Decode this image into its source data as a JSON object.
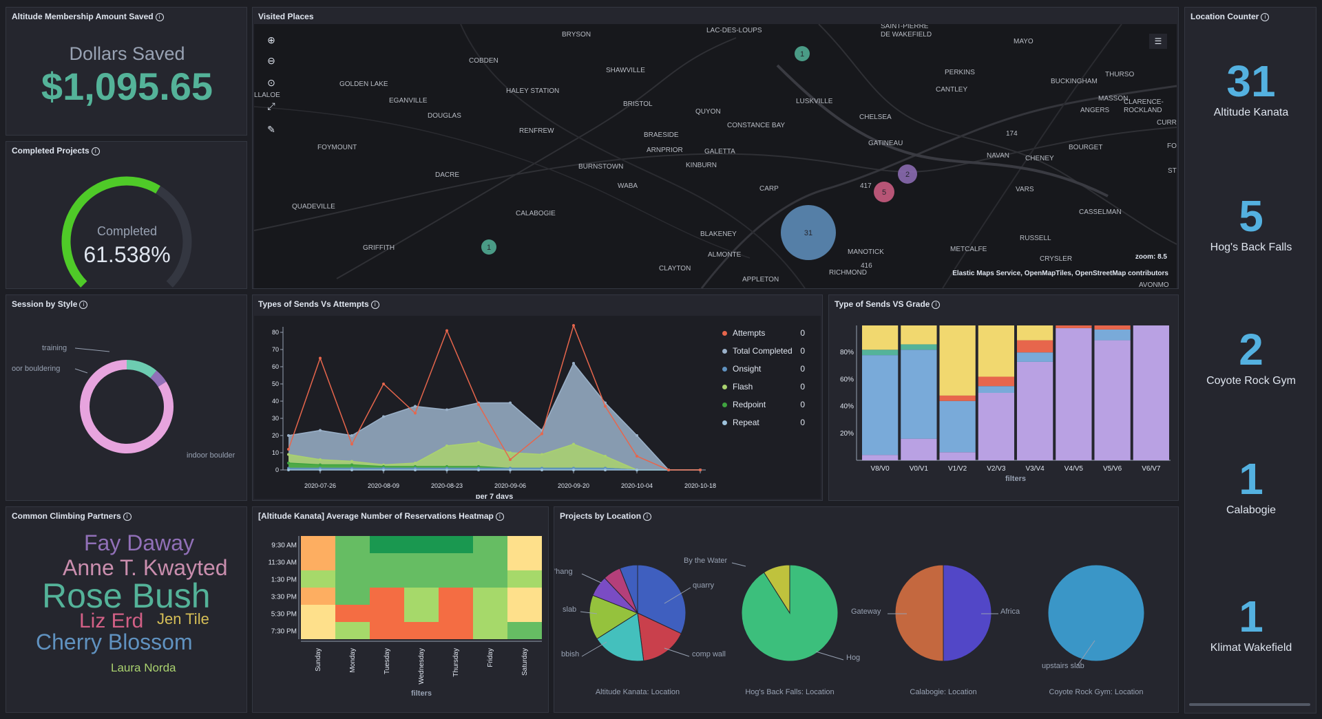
{
  "panels": {
    "dollars": {
      "title": "Altitude Membership Amount Saved",
      "label": "Dollars Saved",
      "value": "$1,095.65",
      "value_color": "#54b399"
    },
    "completed": {
      "title": "Completed Projects",
      "label": "Completed",
      "value": "61.538%",
      "gauge_fraction": 0.61538
    },
    "map": {
      "title": "Visited Places",
      "zoom_label": "zoom:",
      "zoom_value": "8.5",
      "attribution": "Elastic Maps Service, OpenMapTiles, OpenStreetMap contributors",
      "clusters": [
        {
          "count": "1",
          "color": "#54b399"
        },
        {
          "count": "1",
          "color": "#54b399"
        },
        {
          "count": "31",
          "color": "#6092c0"
        },
        {
          "count": "5",
          "color": "#d36086"
        },
        {
          "count": "2",
          "color": "#9170b8"
        }
      ],
      "places": [
        "BRYSON",
        "LAC-DES-LOUPS",
        "SAINT-PIERRE",
        "DE WAKEFIELD",
        "MAYO",
        "COBDEN",
        "SHAWVILLE",
        "PERKINS",
        "BUCKINGHAM",
        "THURSO",
        "GOLDEN LAKE",
        "HALEY STATION",
        "CANTLEY",
        "LLALOE",
        "EGANVILLE",
        "BRISTOL",
        "LUSKVILLE",
        "MASSON",
        "CLARENCE-",
        "ROCKLAND",
        "DOUGLAS",
        "QUYON",
        "ANGERS",
        "CHELSEA",
        "CURRAN",
        "RENFREW",
        "CONSTANCE BAY",
        "BRAESIDE",
        "GATINEAU",
        "FOYMOUNT",
        "ARNPRIOR",
        "GALETTA",
        "174",
        "NAVAN",
        "BOURGET",
        "FO",
        "BURNSTOWN",
        "KINBURN",
        "CHENEY",
        "DACRE",
        "WABA",
        "CARP",
        "417",
        "VARS",
        "ST",
        "QUADEVILLE",
        "CALABOGIE",
        "CASSELMAN",
        "BLAKENEY",
        "GRIFFITH",
        "RUSSELL",
        "ALMONTE",
        "MANOTICK",
        "METCALFE",
        "CRYSLER",
        "416",
        "CLAYTON",
        "RICHMOND",
        "APPLETON",
        "AVONMO"
      ]
    },
    "counter": {
      "title": "Location Counter",
      "items": [
        {
          "value": "31",
          "label": "Altitude Kanata"
        },
        {
          "value": "5",
          "label": "Hog's Back Falls"
        },
        {
          "value": "2",
          "label": "Coyote Rock Gym"
        },
        {
          "value": "1",
          "label": "Calabogie"
        },
        {
          "value": "1",
          "label": "Klimat Wakefield"
        }
      ]
    },
    "session": {
      "title": "Session by Style",
      "labels": [
        "training",
        "oor bouldering",
        "indoor boulder"
      ]
    },
    "sends_attempts": {
      "title": "Types of Sends Vs Attempts",
      "xlabel": "per 7 days"
    },
    "sends_grade": {
      "title": "Type of Sends VS Grade",
      "xlabel": "filters"
    },
    "partners": {
      "title": "Common Climbing Partners",
      "words": [
        {
          "text": "Fay Daway",
          "color": "#9170b8"
        },
        {
          "text": "Anne T. Kwayted",
          "color": "#ca8eae"
        },
        {
          "text": "Rose Bush",
          "color": "#54b399"
        },
        {
          "text": "Liz Erd",
          "color": "#d36086"
        },
        {
          "text": "Jen Tile",
          "color": "#d6bf57"
        },
        {
          "text": "Cherry Blossom",
          "color": "#6092c0"
        },
        {
          "text": "Laura Norda",
          "color": "#aad26f"
        }
      ]
    },
    "heatmap": {
      "title": "[Altitude Kanata] Average Number of Reservations Heatmap",
      "xlabel": "filters"
    },
    "projects": {
      "title": "Projects by Location",
      "pies": [
        {
          "caption": "Altitude Kanata: Location",
          "labels": [
            "By the Water",
            "quarry",
            "'hang",
            "slab",
            "comp wall",
            "bbish"
          ]
        },
        {
          "caption": "Hog's Back Falls: Location",
          "labels": [
            "Hog"
          ]
        },
        {
          "caption": "Calabogie: Location",
          "labels": [
            "Gateway",
            "Africa"
          ]
        },
        {
          "caption": "Coyote Rock Gym: Location",
          "labels": [
            "upstairs slab"
          ]
        }
      ]
    }
  },
  "chart_data": [
    {
      "type": "pie",
      "title": "Session by Style",
      "donut": true,
      "categories": [
        "indoor bouldering",
        "outdoor bouldering",
        "training"
      ],
      "values": [
        84,
        11,
        5
      ],
      "colors": [
        "#e7a4de",
        "#6dccb1",
        "#9170b8"
      ]
    },
    {
      "type": "line",
      "title": "Types of Sends Vs Attempts",
      "xlabel": "per 7 days",
      "ylim": [
        0,
        80
      ],
      "yticks": [
        0,
        10,
        20,
        30,
        40,
        50,
        60,
        70,
        80
      ],
      "xticks": [
        "2020-07-26",
        "2020-08-09",
        "2020-08-23",
        "2020-09-06",
        "2020-09-20",
        "2020-10-04",
        "2020-10-18"
      ],
      "x": [
        "2020-07-19",
        "2020-07-26",
        "2020-08-02",
        "2020-08-09",
        "2020-08-16",
        "2020-08-23",
        "2020-08-30",
        "2020-09-06",
        "2020-09-13",
        "2020-09-20",
        "2020-09-27",
        "2020-10-04",
        "2020-10-11",
        "2020-10-18"
      ],
      "series": [
        {
          "name": "Attempts",
          "color": "#e7664c",
          "style": "line",
          "values": [
            12,
            65,
            15,
            50,
            33,
            81,
            38,
            6,
            21,
            84,
            37,
            8,
            0,
            0
          ]
        },
        {
          "name": "Total Completed",
          "color": "#9ab1c9",
          "style": "area",
          "values": [
            20,
            23,
            20,
            31,
            37,
            35,
            39,
            39,
            23,
            62,
            39,
            20,
            0,
            0
          ]
        },
        {
          "name": "Onsight",
          "color": "#6092c0",
          "style": "area",
          "values": [
            1,
            1,
            1,
            1,
            1,
            1,
            1,
            1,
            1,
            1,
            1,
            0,
            0,
            0
          ]
        },
        {
          "name": "Flash",
          "color": "#aad26f",
          "style": "area",
          "values": [
            9,
            6,
            5,
            3,
            4,
            14,
            16,
            10,
            9,
            15,
            8,
            0,
            0,
            0
          ]
        },
        {
          "name": "Redpoint",
          "color": "#3fa33f",
          "style": "area",
          "values": [
            4,
            3,
            3,
            2,
            2,
            2,
            2,
            1,
            1,
            1,
            1,
            0,
            0,
            0
          ]
        },
        {
          "name": "Repeat",
          "color": "#9fc3dd",
          "style": "area",
          "values": [
            0,
            0,
            0,
            0,
            0,
            0,
            0,
            0,
            0,
            0,
            0,
            0,
            0,
            0
          ]
        }
      ],
      "legend_values": [
        "0",
        "0",
        "0",
        "0",
        "0",
        "0"
      ],
      "legend": "right"
    },
    {
      "type": "bar",
      "stacked": "percent",
      "title": "Type of Sends VS Grade",
      "xlabel": "filters",
      "categories": [
        "V8/V0",
        "V0/V1",
        "V1/V2",
        "V2/V3",
        "V3/V4",
        "V4/V5",
        "V5/V6",
        "V6/V7"
      ],
      "yticks": [
        "20%",
        "40%",
        "60%",
        "80%"
      ],
      "series": [
        {
          "color": "#b9a1e3",
          "values": [
            4,
            16,
            6,
            50,
            73,
            98,
            89,
            100
          ]
        },
        {
          "color": "#79aad9",
          "values": [
            74,
            66,
            38,
            5,
            7,
            0,
            8,
            0
          ]
        },
        {
          "color": "#e7664c",
          "values": [
            0,
            0,
            4,
            7,
            9,
            2,
            3,
            0
          ]
        },
        {
          "color": "#54b399",
          "values": [
            4,
            4,
            0,
            0,
            0,
            0,
            0,
            0
          ]
        },
        {
          "color": "#f1d86f",
          "values": [
            18,
            14,
            52,
            38,
            11,
            0,
            0,
            0
          ]
        }
      ]
    },
    {
      "type": "heatmap",
      "title": "[Altitude Kanata] Average Number of Reservations Heatmap",
      "xlabel": "filters",
      "x": [
        "Sunday",
        "Monday",
        "Tuesday",
        "Wednesday",
        "Thursday",
        "Friday",
        "Saturday"
      ],
      "y": [
        "9:30 AM",
        "11:30 AM",
        "1:30 PM",
        "3:30 PM",
        "5:30 PM",
        "7:30 PM"
      ],
      "values": [
        [
          2,
          5,
          7,
          7,
          7,
          5,
          1
        ],
        [
          2,
          5,
          5,
          5,
          5,
          5,
          1
        ],
        [
          3,
          5,
          5,
          5,
          5,
          4,
          3
        ],
        [
          2,
          4,
          9,
          3,
          9,
          3,
          1
        ],
        [
          1,
          9,
          9,
          3,
          9,
          3,
          1
        ],
        [
          1,
          3,
          9,
          9,
          9,
          3,
          5
        ]
      ],
      "palette": [
        "#d9ef8b",
        "#fee08b",
        "#fdae61",
        "#a6d96a",
        "#66bd63",
        "#66bd63",
        "#1a9850",
        "#1a9850",
        "#1a9850",
        "#f46d43"
      ]
    },
    {
      "type": "pie",
      "title": "Altitude Kanata: Location",
      "categories": [
        "quarry",
        "comp wall",
        "bbish",
        "slab",
        "overhang",
        "",
        "By the Water"
      ],
      "values": [
        32,
        16,
        18,
        15,
        7,
        6,
        6
      ],
      "colors": [
        "#3f5fbf",
        "#c9404c",
        "#44c0bd",
        "#95c23d",
        "#7a4cc4",
        "#b43f7a",
        "#3f5fbf"
      ]
    },
    {
      "type": "pie",
      "title": "Hog's Back Falls: Location",
      "categories": [
        "Hog",
        "By the Water"
      ],
      "values": [
        91,
        9
      ],
      "colors": [
        "#3cbf7c",
        "#bfc23d"
      ]
    },
    {
      "type": "pie",
      "title": "Calabogie: Location",
      "categories": [
        "Africa",
        "Gateway"
      ],
      "values": [
        50,
        50
      ],
      "colors": [
        "#5247c7",
        "#c4683f"
      ]
    },
    {
      "type": "pie",
      "title": "Coyote Rock Gym: Location",
      "categories": [
        "upstairs slab"
      ],
      "values": [
        100
      ],
      "colors": [
        "#3a96c7"
      ]
    }
  ]
}
